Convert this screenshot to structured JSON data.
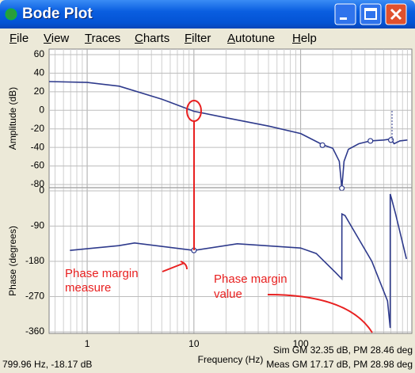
{
  "window": {
    "title": "Bode Plot"
  },
  "menu": [
    "File",
    "View",
    "Traces",
    "Charts",
    "Filter",
    "Autotune",
    "Help"
  ],
  "chart_data": [
    {
      "type": "line",
      "ylabel": "Amplitude (dB)",
      "xlim": [
        0.44,
        1100
      ],
      "log_x": true,
      "xticks": [
        1,
        10,
        100
      ],
      "show_xtick_labels": false,
      "xminorticks": [
        0.5,
        0.6,
        0.7,
        0.8,
        0.9,
        2,
        3,
        4,
        5,
        6,
        7,
        8,
        9,
        20,
        30,
        40,
        50,
        60,
        70,
        80,
        90,
        200,
        300,
        400,
        500,
        600,
        700,
        800,
        900,
        1000
      ],
      "ylim": [
        -80,
        60
      ],
      "yticks": [
        60,
        40,
        20,
        0,
        -20,
        -40,
        -60,
        -80
      ],
      "grid": true,
      "series": [
        {
          "color": "#2e3a8c",
          "x": [
            0.44,
            1,
            2,
            5,
            10,
            20,
            50,
            100,
            160,
            200,
            230,
            243,
            255,
            280,
            350,
            450,
            600,
            700,
            750,
            850,
            1000
          ],
          "values": [
            31,
            30,
            26,
            12,
            -1,
            -8,
            -17,
            -25,
            -37,
            -41,
            -55,
            -84,
            -55,
            -42,
            -36,
            -33,
            -32,
            -31,
            -36,
            -33,
            -32
          ]
        }
      ],
      "points": {
        "x": [
          160,
          243,
          450,
          700
        ],
        "values": [
          -37.6,
          -84,
          -33,
          -32
        ]
      }
    },
    {
      "type": "line",
      "ylabel": "Phase (degrees)",
      "xlabel": "Frequency (Hz)",
      "xlim": [
        0.44,
        1100
      ],
      "log_x": true,
      "xticks": [
        1,
        10,
        100
      ],
      "show_xtick_labels": true,
      "xminorticks": [
        0.5,
        0.6,
        0.7,
        0.8,
        0.9,
        2,
        3,
        4,
        5,
        6,
        7,
        8,
        9,
        20,
        30,
        40,
        50,
        60,
        70,
        80,
        90,
        200,
        300,
        400,
        500,
        600,
        700,
        800,
        900,
        1000
      ],
      "ylim": [
        -360,
        0
      ],
      "yticks": [
        0,
        -90,
        -180,
        -270,
        -360
      ],
      "grid": true,
      "series": [
        {
          "color": "#2e3a8c",
          "x": [
            0.69,
            1.98,
            2.78,
            10,
            25.5,
            100,
            140,
            215,
            243,
            243.5,
            260,
            464,
            651,
            690,
            690.5,
            710,
            775,
            980
          ],
          "values": [
            -152,
            -140,
            -133,
            -152,
            -135,
            -146,
            -160,
            -210,
            -225,
            -59,
            -63,
            -180,
            -281,
            -350,
            -8,
            -20,
            -59,
            -174
          ]
        }
      ],
      "points": {
        "x": [
          10
        ],
        "values": [
          -152
        ]
      }
    }
  ],
  "annotations": [
    {
      "lines": [
        "Phase margin",
        "measure"
      ]
    },
    {
      "lines": [
        "Phase margin",
        "value"
      ]
    }
  ],
  "status": {
    "cursor": "799.96 Hz, -18.17 dB",
    "sim": "Sim GM 32.35 dB, PM 28.46 deg",
    "meas": "Meas GM 17.17 dB, PM 28.98 deg"
  }
}
